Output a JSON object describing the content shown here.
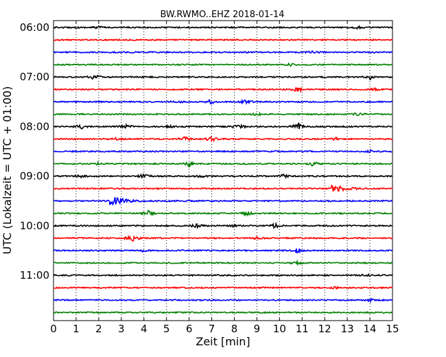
{
  "chart_data": {
    "type": "line",
    "title": "BW.RWMO..EHZ 2018-01-14",
    "xlabel": "Zeit  [min]",
    "ylabel": "UTC (Lokalzeit = UTC + 01:00)",
    "xlim": [
      0,
      15
    ],
    "x_ticks": [
      "0",
      "1",
      "2",
      "3",
      "4",
      "5",
      "6",
      "7",
      "8",
      "9",
      "10",
      "11",
      "12",
      "13",
      "14",
      "15"
    ],
    "y_ticks": [
      "06:00",
      "07:00",
      "08:00",
      "09:00",
      "10:00",
      "11:00"
    ],
    "grid": "vertical dotted at each minute",
    "trace_colors": [
      "#000000",
      "#ff0000",
      "#0000ff",
      "#008000"
    ],
    "traces": [
      {
        "start": "06:00",
        "events": [
          [
            2.0,
            1
          ],
          [
            13.5,
            1
          ]
        ]
      },
      {
        "start": "06:15",
        "events": []
      },
      {
        "start": "06:30",
        "events": [
          [
            11.5,
            1
          ]
        ]
      },
      {
        "start": "06:45",
        "events": [
          [
            10.5,
            1
          ]
        ]
      },
      {
        "start": "07:00",
        "events": [
          [
            1.8,
            2
          ],
          [
            14.0,
            2
          ]
        ]
      },
      {
        "start": "07:15",
        "events": [
          [
            10.8,
            2
          ],
          [
            14.2,
            1
          ]
        ]
      },
      {
        "start": "07:30",
        "events": [
          [
            5.5,
            1
          ],
          [
            7.0,
            2
          ],
          [
            8.5,
            2
          ]
        ]
      },
      {
        "start": "07:45",
        "events": [
          [
            9.0,
            1
          ],
          [
            13.5,
            1
          ]
        ]
      },
      {
        "start": "08:00",
        "events": [
          [
            1.2,
            2
          ],
          [
            3.2,
            2
          ],
          [
            5.2,
            1
          ],
          [
            8.2,
            2
          ],
          [
            10.8,
            3
          ]
        ]
      },
      {
        "start": "08:15",
        "events": [
          [
            2.8,
            1
          ],
          [
            5.8,
            2
          ],
          [
            7.0,
            2
          ],
          [
            12.5,
            1
          ]
        ]
      },
      {
        "start": "08:30",
        "events": [
          [
            14.0,
            1
          ]
        ]
      },
      {
        "start": "08:45",
        "events": [
          [
            2.0,
            1
          ],
          [
            6.0,
            2
          ],
          [
            11.5,
            2
          ]
        ]
      },
      {
        "start": "09:00",
        "events": [
          [
            1.2,
            1
          ],
          [
            4.0,
            2
          ],
          [
            6.5,
            1
          ],
          [
            10.2,
            2
          ]
        ]
      },
      {
        "start": "09:15",
        "events": [
          [
            12.3,
            6
          ]
        ]
      },
      {
        "start": "09:30",
        "events": [
          [
            2.5,
            9
          ]
        ]
      },
      {
        "start": "09:45",
        "events": [
          [
            4.2,
            2
          ],
          [
            8.6,
            2
          ]
        ]
      },
      {
        "start": "10:00",
        "events": [
          [
            6.3,
            2
          ],
          [
            8.0,
            1
          ],
          [
            9.8,
            2
          ]
        ]
      },
      {
        "start": "10:15",
        "events": [
          [
            3.5,
            3
          ],
          [
            9.0,
            1
          ]
        ]
      },
      {
        "start": "10:30",
        "events": [
          [
            4.0,
            1
          ],
          [
            10.8,
            2
          ]
        ]
      },
      {
        "start": "10:45",
        "events": [
          [
            10.8,
            1
          ]
        ]
      },
      {
        "start": "11:00",
        "events": [
          [
            13.8,
            1
          ]
        ]
      },
      {
        "start": "11:15",
        "events": [
          [
            12.5,
            1
          ]
        ]
      },
      {
        "start": "11:30",
        "events": [
          [
            14.0,
            1
          ]
        ]
      },
      {
        "start": "11:45",
        "events": []
      }
    ]
  }
}
